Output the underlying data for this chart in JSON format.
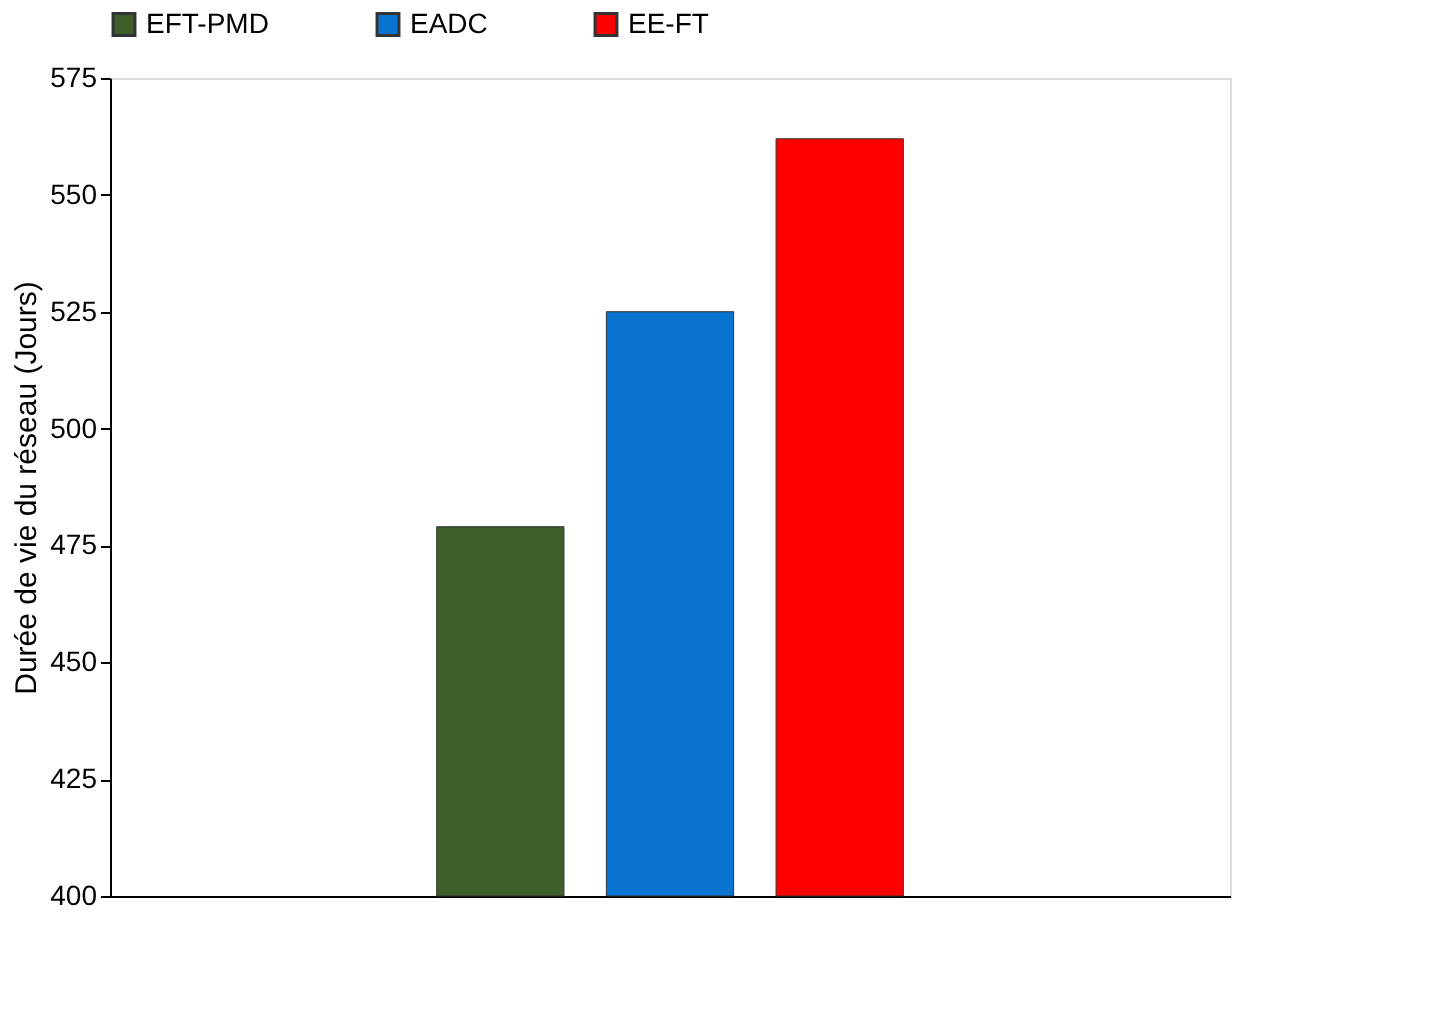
{
  "chart_data": {
    "type": "bar",
    "ylabel": "Durée de vie du réseau (Jours)",
    "categories": [
      null
    ],
    "series": [
      {
        "name": "EFT-PMD",
        "color": "#3f5f2a",
        "values": [
          479
        ]
      },
      {
        "name": "EADC",
        "color": "#0874d0",
        "values": [
          525
        ]
      },
      {
        "name": "EE-FT",
        "color": "#ff0000",
        "values": [
          562
        ]
      }
    ],
    "ylim": [
      400,
      575
    ],
    "yticks": [
      400,
      425,
      450,
      475,
      500,
      525,
      550,
      575
    ],
    "grid": false,
    "legend": "top",
    "tick_labels": "y"
  }
}
